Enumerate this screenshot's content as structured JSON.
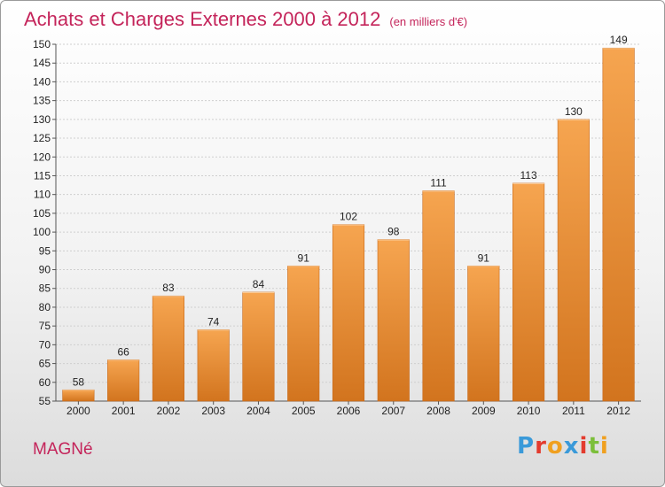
{
  "header": {
    "title": "Achats et Charges Externes 2000 à 2012",
    "subtitle": "(en milliers d'€)"
  },
  "commune": "MAGNé",
  "logo": {
    "text": "Proxiti",
    "letters": [
      {
        "char": "P",
        "color": "#3a9ad9"
      },
      {
        "char": "r",
        "color": "#e33b2e"
      },
      {
        "char": "o",
        "color": "#f0a020"
      },
      {
        "char": "x",
        "color": "#3a9ad9"
      },
      {
        "char": "i",
        "color": "#e33b2e"
      },
      {
        "char": "t",
        "color": "#7cbf3a"
      },
      {
        "char": "i",
        "color": "#f0a020"
      }
    ]
  },
  "chart_data": {
    "type": "bar",
    "title": "Achats et Charges Externes 2000 à 2012",
    "subtitle": "(en milliers d'€)",
    "categories": [
      "2000",
      "2001",
      "2002",
      "2003",
      "2004",
      "2005",
      "2006",
      "2007",
      "2008",
      "2009",
      "2010",
      "2011",
      "2012"
    ],
    "values": [
      58,
      66,
      83,
      74,
      84,
      91,
      102,
      98,
      111,
      91,
      113,
      130,
      149
    ],
    "ylim": [
      55,
      150
    ],
    "yticks": [
      55,
      60,
      65,
      70,
      75,
      80,
      85,
      90,
      95,
      100,
      105,
      110,
      115,
      120,
      125,
      130,
      135,
      140,
      145,
      150
    ],
    "grid": true,
    "bar_color_top": "#f6a550",
    "bar_color_bottom": "#d2741e"
  }
}
